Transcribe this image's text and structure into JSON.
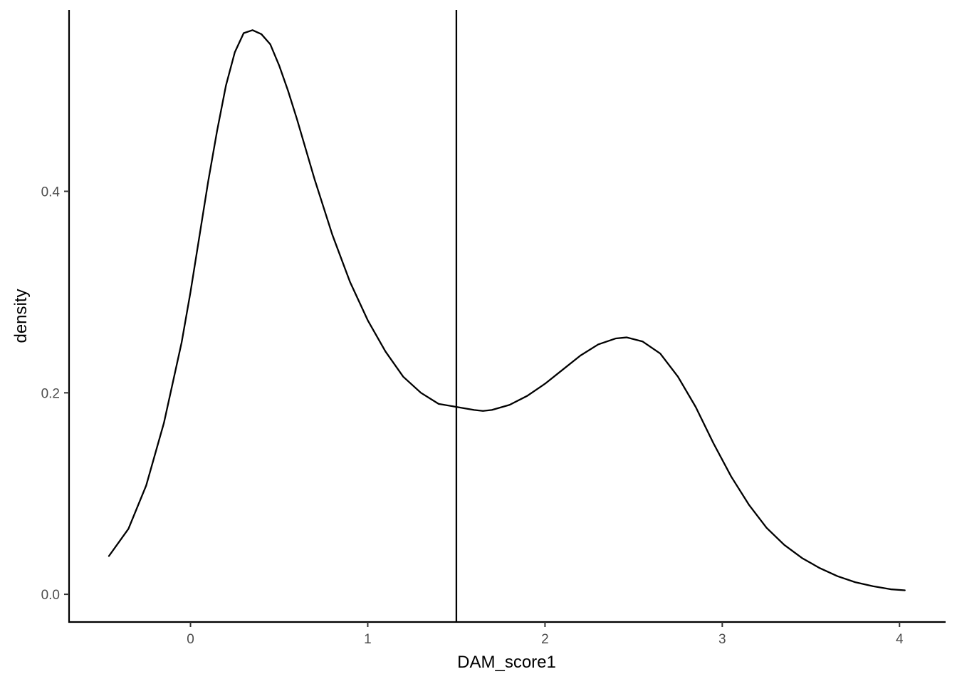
{
  "chart_data": {
    "type": "line",
    "title": "",
    "xlabel": "DAM_score1",
    "ylabel": "density",
    "xlim": [
      -0.685,
      4.26
    ],
    "ylim": [
      -0.0275,
      0.58
    ],
    "xticks": [
      0,
      1,
      2,
      3,
      4
    ],
    "xtick_labels": [
      "0",
      "1",
      "2",
      "3",
      "4"
    ],
    "yticks": [
      0.0,
      0.2,
      0.4
    ],
    "ytick_labels": [
      "0.0",
      "0.2",
      "0.4"
    ],
    "grid": false,
    "legend": "none",
    "vline_x": 1.5,
    "series": [
      {
        "x": [
          -0.46,
          -0.35,
          -0.25,
          -0.15,
          -0.05,
          0.0,
          0.05,
          0.1,
          0.15,
          0.2,
          0.25,
          0.3,
          0.35,
          0.4,
          0.45,
          0.5,
          0.55,
          0.6,
          0.7,
          0.8,
          0.9,
          1.0,
          1.1,
          1.2,
          1.3,
          1.4,
          1.5,
          1.6,
          1.65,
          1.7,
          1.8,
          1.9,
          2.0,
          2.1,
          2.2,
          2.3,
          2.4,
          2.46,
          2.55,
          2.65,
          2.75,
          2.85,
          2.95,
          3.05,
          3.15,
          3.25,
          3.35,
          3.45,
          3.55,
          3.65,
          3.75,
          3.85,
          3.95,
          4.03
        ],
        "y": [
          0.038,
          0.065,
          0.108,
          0.17,
          0.25,
          0.3,
          0.355,
          0.41,
          0.46,
          0.505,
          0.538,
          0.557,
          0.56,
          0.556,
          0.546,
          0.525,
          0.5,
          0.472,
          0.412,
          0.357,
          0.31,
          0.272,
          0.241,
          0.216,
          0.2,
          0.189,
          0.186,
          0.183,
          0.182,
          0.183,
          0.188,
          0.197,
          0.209,
          0.223,
          0.237,
          0.248,
          0.254,
          0.255,
          0.251,
          0.239,
          0.216,
          0.186,
          0.15,
          0.117,
          0.089,
          0.066,
          0.049,
          0.036,
          0.026,
          0.018,
          0.012,
          0.008,
          0.005,
          0.004
        ]
      }
    ]
  }
}
